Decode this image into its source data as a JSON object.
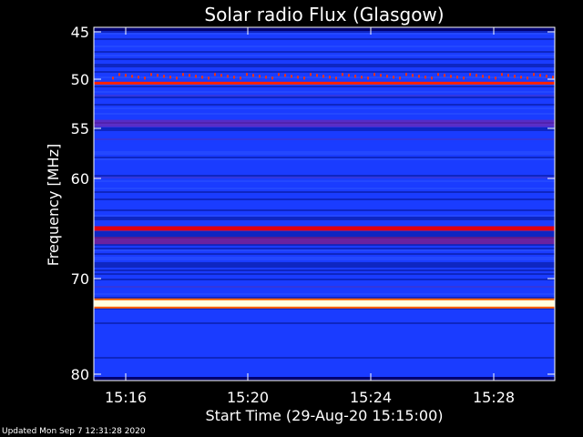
{
  "chart_data": {
    "type": "heatmap",
    "title": "Solar radio Flux (Glasgow)",
    "xlabel": "Start Time (29-Aug-20 15:15:00)",
    "ylabel": "Frequency [MHz]",
    "xlim_minutes": [
      "15:15:00",
      "15:30:00"
    ],
    "ylim_mhz": [
      45,
      80
    ],
    "y_ticks": [
      45,
      50,
      55,
      60,
      70,
      80
    ],
    "x_ticks": [
      "15:16",
      "15:20",
      "15:24",
      "15:28"
    ],
    "y_scale": "nonlinear",
    "colormap": [
      "#000080",
      "#1a3cff",
      "#ff0000",
      "#ffff00",
      "#ffffff"
    ],
    "background_color": "#1a3cff",
    "bands_mhz": [
      {
        "freq": 50.4,
        "level": "medium-high",
        "color": "#ff2000"
      },
      {
        "freq": 54.5,
        "level": "medium",
        "color": "#8020a0"
      },
      {
        "freq": 65.0,
        "level": "high",
        "color": "#e00010"
      },
      {
        "freq": 66.2,
        "level": "medium",
        "color": "#a01060"
      },
      {
        "freq": 72.6,
        "level": "max",
        "color": "#ffffe0"
      }
    ]
  },
  "footer": {
    "updated": "Updated Mon Sep  7 12:31:28 2020"
  }
}
